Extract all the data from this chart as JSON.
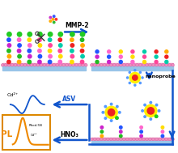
{
  "bg_color": "#ffffff",
  "arrow_color": "#1155cc",
  "surface_pink": "#f090c0",
  "surface_blue": "#99c4e8",
  "bead_cols": [
    "#ee2222",
    "#ffaa00",
    "#22bb22",
    "#cc22cc",
    "#2255ff",
    "#ff66cc",
    "#ffdd00",
    "#ff4499",
    "#00ccaa"
  ],
  "green_top": "#22cc22",
  "nanoprobe_red": "#ee2222",
  "nanoprobe_yellow": "#ffee00",
  "nanoprobe_blue": "#5599ff",
  "inset_edge": "#dd8800",
  "inset_curve": "#ee8800",
  "pl_color": "#ee8800",
  "asv_color": "#1155cc",
  "mmp2_text": "MMP-2",
  "nanoprobe_text": "nanoprobe",
  "asv_text": "ASV",
  "pl_text": "PL",
  "hno3_text": "HNO₃",
  "cd2_text": "Cd²⁺",
  "rhod_text": "Rhod-5N",
  "cd2b_text": "Cd²⁺"
}
